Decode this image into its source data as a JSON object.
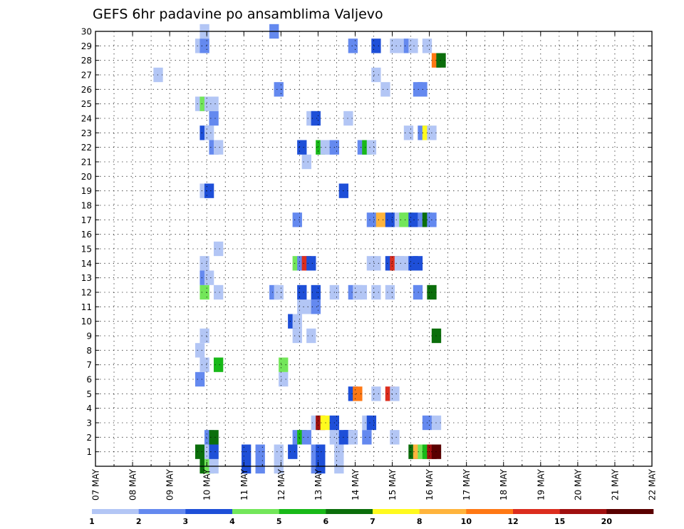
{
  "chart_data": {
    "type": "heatmap",
    "title": "GEFS 6hr padavine po ansamblima Valjevo",
    "x_tick_labels": [
      "07 MAY",
      "08 MAY",
      "09 MAY",
      "10 MAY",
      "11 MAY",
      "12 MAY",
      "13 MAY",
      "14 MAY",
      "15 MAY",
      "16 MAY",
      "17 MAY",
      "18 MAY",
      "19 MAY",
      "20 MAY",
      "21 MAY",
      "22 MAY"
    ],
    "y_tick_labels": [
      "1",
      "2",
      "3",
      "4",
      "5",
      "6",
      "7",
      "8",
      "9",
      "10",
      "11",
      "12",
      "13",
      "14",
      "15",
      "16",
      "17",
      "18",
      "19",
      "20",
      "21",
      "22",
      "23",
      "24",
      "25",
      "26",
      "27",
      "28",
      "29",
      "30"
    ],
    "y_range": [
      0,
      30
    ],
    "x_range_days": [
      0,
      15
    ],
    "grid": "dotted",
    "legend": {
      "position": "bottom",
      "levels": [
        "1",
        "2",
        "3",
        "4",
        "5",
        "6",
        "7",
        "8",
        "10",
        "12",
        "15",
        "20"
      ],
      "colors": [
        "#b3c6f5",
        "#6489ef",
        "#1e4fd8",
        "#73e65a",
        "#19b919",
        "#0b6e0b",
        "#fffa1e",
        "#ffb43c",
        "#ff7814",
        "#dc2d1e",
        "#a00f0f",
        "#5a0000"
      ]
    },
    "color_bins": [
      {
        "min": 1,
        "max": 2,
        "color": "#b3c6f5"
      },
      {
        "min": 2,
        "max": 3,
        "color": "#6489ef"
      },
      {
        "min": 3,
        "max": 4,
        "color": "#1e4fd8"
      },
      {
        "min": 4,
        "max": 5,
        "color": "#73e65a"
      },
      {
        "min": 5,
        "max": 6,
        "color": "#19b919"
      },
      {
        "min": 6,
        "max": 7,
        "color": "#0b6e0b"
      },
      {
        "min": 7,
        "max": 8,
        "color": "#fffa1e"
      },
      {
        "min": 8,
        "max": 10,
        "color": "#ffb43c"
      },
      {
        "min": 10,
        "max": 12,
        "color": "#ff7814"
      },
      {
        "min": 12,
        "max": 15,
        "color": "#dc2d1e"
      },
      {
        "min": 15,
        "max": 20,
        "color": "#a00f0f"
      },
      {
        "min": 20,
        "max": 30,
        "color": "#5a0000"
      }
    ],
    "cells": [
      [
        11.25,
        0.5,
        4,
        6
      ],
      [
        11.75,
        0.5,
        4,
        4
      ],
      [
        12.25,
        0.5,
        4,
        1
      ],
      [
        15.75,
        0.5,
        4,
        3
      ],
      [
        17.25,
        0.5,
        4,
        2
      ],
      [
        19.25,
        0.5,
        4,
        1
      ],
      [
        23.25,
        0.5,
        4,
        2
      ],
      [
        23.75,
        0.5,
        4,
        3
      ],
      [
        25.75,
        0.5,
        4,
        1
      ],
      [
        10.75,
        1,
        2,
        6
      ],
      [
        11.75,
        1,
        2,
        1
      ],
      [
        12.25,
        1,
        2,
        3
      ],
      [
        20.75,
        1,
        2,
        3
      ],
      [
        33.75,
        1,
        2,
        6
      ],
      [
        34.25,
        1,
        2,
        8
      ],
      [
        34.75,
        1,
        2,
        4
      ],
      [
        35.25,
        1,
        2,
        5
      ],
      [
        35.75,
        1,
        2,
        11
      ],
      [
        36.25,
        1,
        2,
        12
      ],
      [
        11.75,
        2,
        2,
        2
      ],
      [
        12.25,
        2,
        2,
        6
      ],
      [
        21.25,
        2,
        2,
        2
      ],
      [
        21.75,
        2,
        2,
        5
      ],
      [
        22.25,
        2,
        2,
        2
      ],
      [
        25.25,
        2,
        2,
        1
      ],
      [
        25.75,
        2,
        2,
        1
      ],
      [
        26.25,
        2,
        2,
        3
      ],
      [
        26.75,
        2,
        2,
        3
      ],
      [
        27.25,
        2,
        2,
        1
      ],
      [
        28.75,
        2,
        2,
        2
      ],
      [
        31.75,
        2,
        2,
        1
      ],
      [
        23.25,
        3,
        2,
        1
      ],
      [
        23.75,
        3,
        2,
        11
      ],
      [
        24.25,
        3,
        2,
        7
      ],
      [
        25.25,
        3,
        2,
        3
      ],
      [
        28.75,
        3,
        2,
        1
      ],
      [
        29.25,
        3,
        2,
        3
      ],
      [
        35.25,
        3,
        2,
        2
      ],
      [
        36.25,
        3,
        2,
        1
      ],
      [
        27.25,
        5,
        2,
        3
      ],
      [
        27.75,
        5,
        2,
        9
      ],
      [
        29.75,
        5,
        2,
        1
      ],
      [
        31.25,
        5,
        2,
        10
      ],
      [
        31.75,
        5,
        2,
        1
      ],
      [
        10.75,
        6,
        2,
        2
      ],
      [
        19.75,
        6,
        2,
        1
      ],
      [
        11.25,
        7,
        2,
        1
      ],
      [
        12.75,
        7,
        2,
        5
      ],
      [
        19.75,
        7,
        2,
        4
      ],
      [
        10.75,
        8,
        2,
        1
      ],
      [
        11.25,
        9,
        2,
        1
      ],
      [
        21.25,
        9,
        2,
        1
      ],
      [
        22.75,
        9,
        2,
        1
      ],
      [
        36.25,
        9,
        2,
        6
      ],
      [
        20.75,
        10,
        2,
        3
      ],
      [
        21.25,
        10,
        2,
        1
      ],
      [
        21.75,
        11,
        2,
        1
      ],
      [
        22.25,
        11,
        2,
        1
      ],
      [
        23.25,
        11,
        2,
        2
      ],
      [
        11.25,
        12,
        2,
        4
      ],
      [
        12.75,
        12,
        2,
        1
      ],
      [
        18.75,
        12,
        2,
        2
      ],
      [
        19.25,
        12,
        2,
        1
      ],
      [
        21.75,
        12,
        2,
        3
      ],
      [
        23.25,
        12,
        2,
        3
      ],
      [
        25.25,
        12,
        2,
        1
      ],
      [
        27.25,
        12,
        2,
        2
      ],
      [
        27.75,
        12,
        2,
        1
      ],
      [
        28.25,
        12,
        2,
        1
      ],
      [
        29.75,
        12,
        2,
        1
      ],
      [
        31.25,
        12,
        2,
        1
      ],
      [
        34.25,
        12,
        2,
        2
      ],
      [
        35.75,
        12,
        2,
        6
      ],
      [
        11.25,
        13,
        2,
        2
      ],
      [
        11.75,
        13,
        2,
        1
      ],
      [
        11.25,
        14,
        2,
        1
      ],
      [
        21.25,
        14,
        2,
        4
      ],
      [
        21.75,
        14,
        2,
        2
      ],
      [
        22.25,
        14,
        2,
        10
      ],
      [
        22.75,
        14,
        2,
        3
      ],
      [
        29.25,
        14,
        2,
        1
      ],
      [
        29.75,
        14,
        2,
        1
      ],
      [
        31.25,
        14,
        2,
        3
      ],
      [
        31.75,
        14,
        2,
        10
      ],
      [
        32.25,
        14,
        2,
        1
      ],
      [
        32.75,
        14,
        2,
        1
      ],
      [
        33.75,
        14,
        2,
        3
      ],
      [
        34.25,
        14,
        2,
        3
      ],
      [
        12.75,
        15,
        2,
        1
      ],
      [
        21.25,
        17,
        2,
        2
      ],
      [
        29.25,
        17,
        2,
        2
      ],
      [
        30.25,
        17,
        2,
        8
      ],
      [
        31.25,
        17,
        2,
        3
      ],
      [
        32.25,
        17,
        2,
        1
      ],
      [
        32.75,
        17,
        2,
        4
      ],
      [
        33.25,
        17,
        2,
        4
      ],
      [
        33.75,
        17,
        2,
        3
      ],
      [
        34.75,
        17,
        2,
        2
      ],
      [
        35.25,
        17,
        2,
        6
      ],
      [
        35.75,
        17,
        2,
        2
      ],
      [
        11.25,
        19,
        2,
        1
      ],
      [
        11.75,
        19,
        2,
        3
      ],
      [
        26.25,
        19,
        2,
        3
      ],
      [
        22.25,
        21,
        2,
        1
      ],
      [
        12.25,
        22,
        2,
        2
      ],
      [
        12.75,
        22,
        2,
        1
      ],
      [
        21.75,
        22,
        2,
        3
      ],
      [
        23.75,
        22,
        2,
        5
      ],
      [
        24.25,
        22,
        2,
        1
      ],
      [
        24.75,
        22,
        2,
        1
      ],
      [
        25.25,
        22,
        2,
        2
      ],
      [
        28.25,
        22,
        2,
        2
      ],
      [
        28.75,
        22,
        2,
        5
      ],
      [
        29.25,
        22,
        2,
        1
      ],
      [
        11.25,
        23,
        2,
        3
      ],
      [
        11.75,
        23,
        2,
        1
      ],
      [
        33.25,
        23,
        2,
        1
      ],
      [
        34.75,
        23,
        2,
        2
      ],
      [
        35.25,
        23,
        2,
        7
      ],
      [
        35.75,
        23,
        2,
        1
      ],
      [
        12.25,
        24,
        2,
        2
      ],
      [
        22.75,
        24,
        2,
        1
      ],
      [
        23.25,
        24,
        2,
        3
      ],
      [
        26.75,
        24,
        2,
        1
      ],
      [
        10.75,
        25,
        2,
        1
      ],
      [
        11.25,
        25,
        2,
        4
      ],
      [
        11.75,
        25,
        2,
        1
      ],
      [
        12.25,
        25,
        2,
        1
      ],
      [
        19.25,
        26,
        2,
        2
      ],
      [
        30.75,
        26,
        2,
        1
      ],
      [
        34.25,
        26,
        2,
        2
      ],
      [
        34.75,
        26,
        2,
        2
      ],
      [
        6.25,
        27,
        2,
        1
      ],
      [
        29.75,
        27,
        2,
        1
      ],
      [
        36.25,
        28,
        2,
        9
      ],
      [
        36.75,
        28,
        2,
        6
      ],
      [
        10.75,
        29,
        2,
        1
      ],
      [
        11.25,
        29,
        2,
        2
      ],
      [
        27.25,
        29,
        2,
        2
      ],
      [
        29.75,
        29,
        2,
        3
      ],
      [
        31.75,
        29,
        2,
        1
      ],
      [
        32.25,
        29,
        2,
        1
      ],
      [
        33.25,
        29,
        2,
        2
      ],
      [
        33.75,
        29,
        2,
        1
      ],
      [
        35.25,
        29,
        2,
        1
      ],
      [
        11.25,
        30,
        2,
        1
      ],
      [
        18.75,
        30,
        2,
        2
      ]
    ],
    "cell_format": "[x_in_6h_steps_from_07MAY00, y_center_member, height_half_units, color_bin_index_1_based]"
  }
}
